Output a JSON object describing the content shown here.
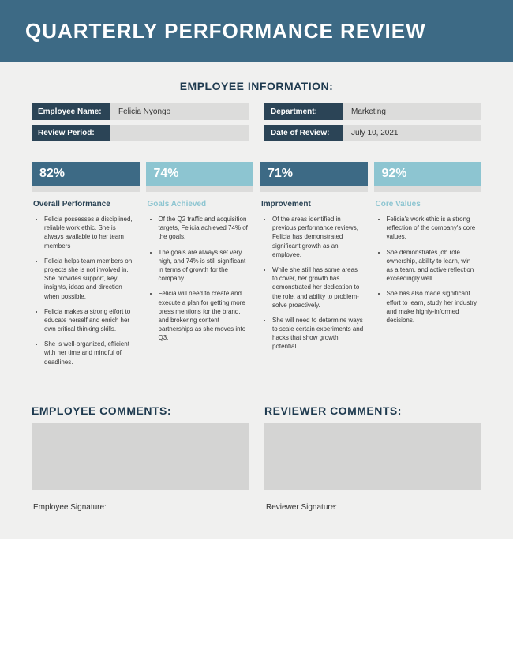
{
  "colors": {
    "header_bg": "#3d6a85",
    "label_bg": "#2b4456",
    "value_bg": "#dcdcdb",
    "page_bg": "#f0f0ef",
    "dark_teal": "#3d6a85",
    "light_teal": "#8dc5d1",
    "title_text": "#1e3a4f",
    "comment_box_bg": "#d4d4d3"
  },
  "header": {
    "title": "QUARTERLY PERFORMANCE REVIEW"
  },
  "employee_info": {
    "section_title": "EMPLOYEE INFORMATION:",
    "fields": {
      "name_label": "Employee Name:",
      "name_value": "Felicia Nyongo",
      "dept_label": "Department:",
      "dept_value": "Marketing",
      "period_label": "Review Period:",
      "period_value": "",
      "date_label": "Date of Review:",
      "date_value": "July 10, 2021"
    }
  },
  "metrics": [
    {
      "pct": "82%",
      "pct_bg": "#3d6a85",
      "title": "Overall Performance",
      "title_color": "#2b4456",
      "bullets": [
        "Felicia possesses a disciplined, reliable work ethic. She is always available to her team members",
        "Felicia helps team members on projects she is not involved in. She provides support, key insights, ideas and direction when possible.",
        "Felicia makes a strong effort to educate herself and enrich her own critical thinking skills.",
        "She is well-organized, efficient with her time and mindful of deadlines."
      ]
    },
    {
      "pct": "74%",
      "pct_bg": "#8dc5d1",
      "title": "Goals Achieved",
      "title_color": "#8dc5d1",
      "bullets": [
        "Of the Q2 traffic and acquisition targets, Felicia achieved 74% of the goals.",
        "The goals are always set very high, and 74% is still significant in terms of growth for the company.",
        "Felicia will need to create and execute a plan for getting more press mentions for the brand, and brokering content partnerships as she moves into Q3."
      ]
    },
    {
      "pct": "71%",
      "pct_bg": "#3d6a85",
      "title": "Improvement",
      "title_color": "#2b4456",
      "bullets": [
        "Of the areas identified in previous performance reviews, Felicia has demonstrated significant growth as an employee.",
        "While she still has some areas to cover, her growth has demonstrated her dedication to the role, and ability to problem-solve proactively.",
        "She will need to determine ways to scale certain experiments and hacks that show growth potential."
      ]
    },
    {
      "pct": "92%",
      "pct_bg": "#8dc5d1",
      "title": "Core Values",
      "title_color": "#8dc5d1",
      "bullets": [
        "Felicia's work ethic is a strong reflection of the company's core values.",
        "She demonstrates job role ownership, ability to learn, win as a team, and active reflection exceedingly well.",
        "She has also made significant effort to learn, study her industry and make highly-informed decisions."
      ]
    }
  ],
  "comments": {
    "employee_title": "EMPLOYEE COMMENTS:",
    "employee_sig": "Employee Signature:",
    "reviewer_title": "REVIEWER COMMENTS:",
    "reviewer_sig": "Reviewer Signature:"
  }
}
